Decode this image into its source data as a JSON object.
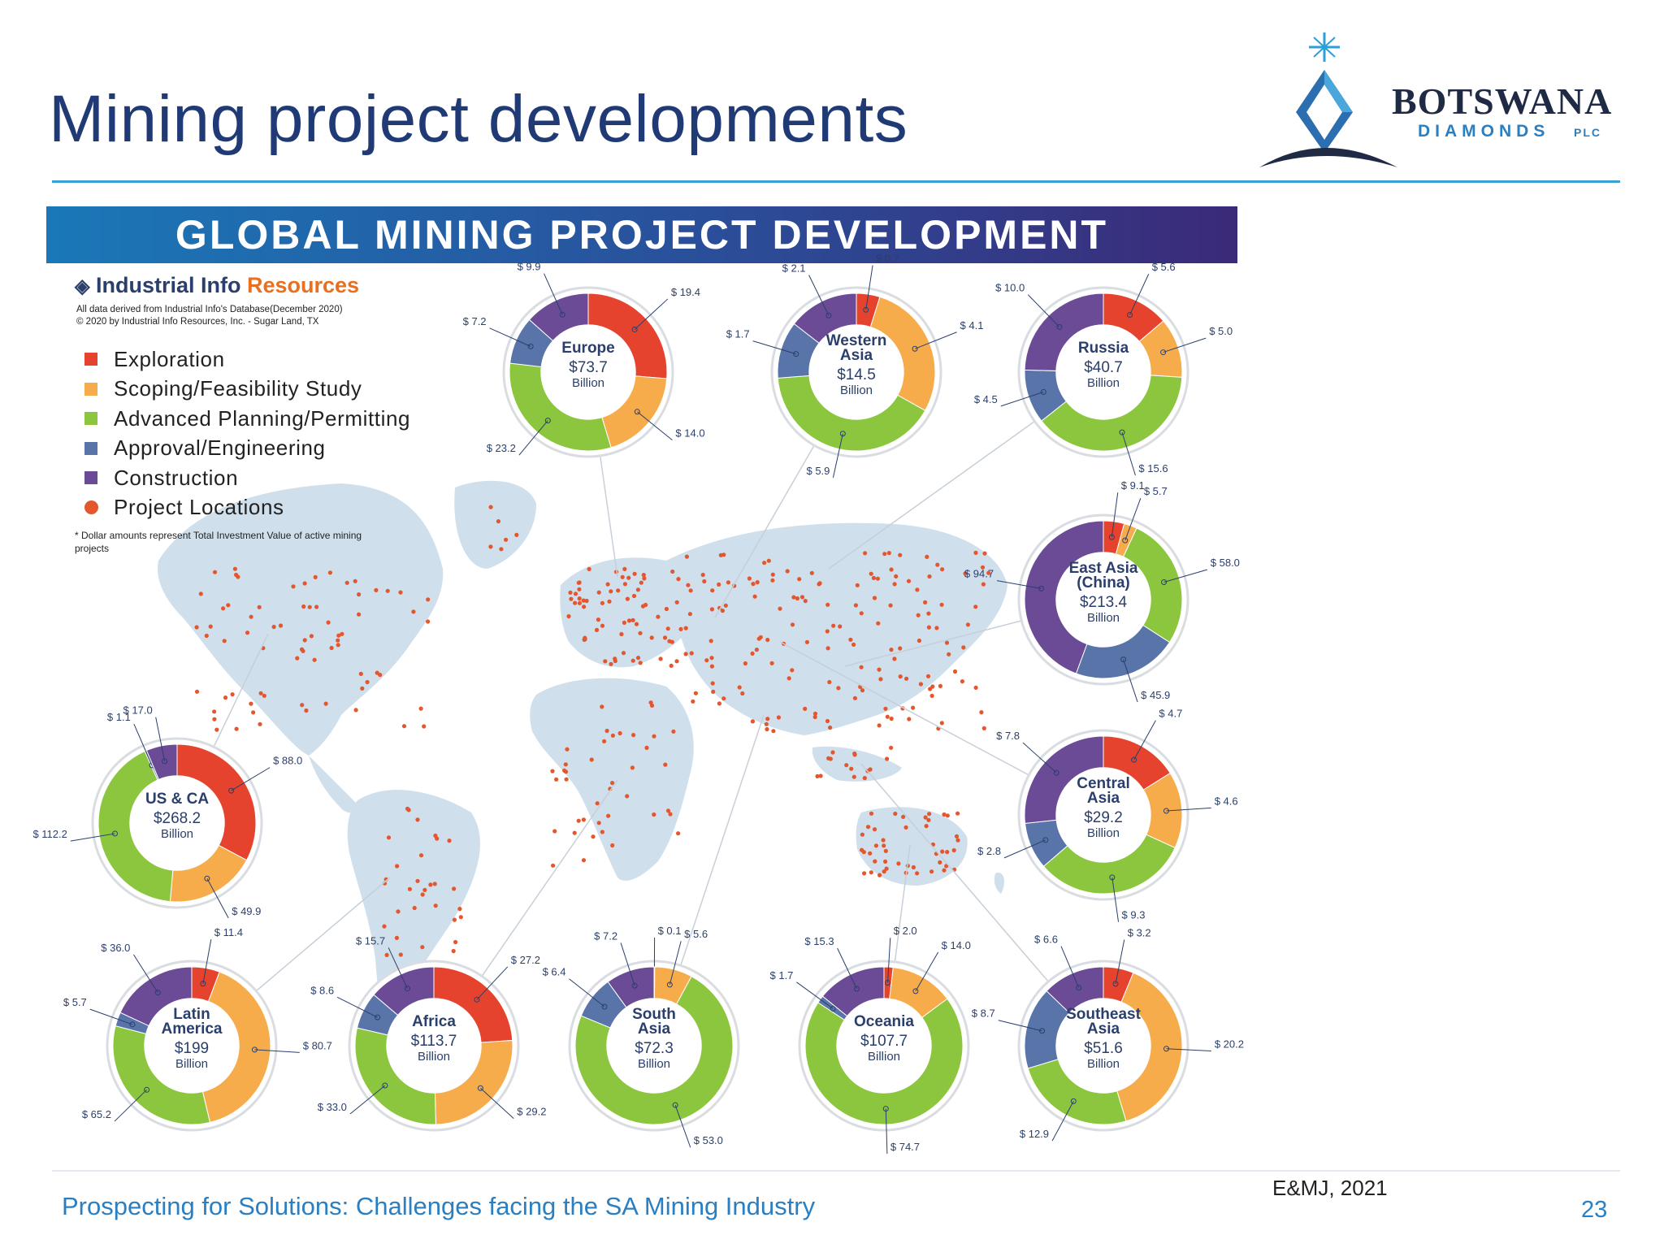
{
  "slide": {
    "title": "Mining project developments",
    "footer": "Prospecting for Solutions: Challenges facing the SA Mining Industry",
    "source": "E&MJ, 2021",
    "page": "23"
  },
  "logo": {
    "word": "BOTSWANA",
    "sub": "DIAMONDS",
    "plc": "PLC"
  },
  "infographic": {
    "title": "GLOBAL MINING PROJECT DEVELOPMENT",
    "publisher_part1": "Industrial Info",
    "publisher_part2": "Resources",
    "source_line1": "All data derived from Industrial Info's Database(December 2020)",
    "source_line2": "© 2020 by Industrial Info Resources, Inc. - Sugar Land, TX",
    "footnote": "* Dollar amounts represent Total Investment Value of active mining projects",
    "map_label": "Project Locations"
  },
  "colors": {
    "exploration": "#e5432d",
    "scoping": "#f7ac4c",
    "advanced": "#8cc63f",
    "approval": "#5874a8",
    "construction": "#6b4a96",
    "map": "#cfdfec",
    "dot": "#e4572e"
  },
  "chart_data": {
    "type": "pie",
    "variant": "donut",
    "stages": [
      {
        "key": "exploration",
        "name": "Exploration"
      },
      {
        "key": "scoping",
        "name": "Scoping/Feasibility Study"
      },
      {
        "key": "advanced",
        "name": "Advanced Planning/Permitting"
      },
      {
        "key": "approval",
        "name": "Approval/Engineering"
      },
      {
        "key": "construction",
        "name": "Construction"
      }
    ],
    "regions": [
      {
        "id": "europe",
        "name_lines": [
          "Europe"
        ],
        "total": "$73.7",
        "unit": "Billion",
        "values": [
          19.4,
          14.0,
          23.2,
          7.2,
          9.9
        ]
      },
      {
        "id": "western-asia",
        "name_lines": [
          "Western",
          "Asia"
        ],
        "total": "$14.5",
        "unit": "Billion",
        "values": [
          0.7,
          4.1,
          5.9,
          1.7,
          2.1
        ]
      },
      {
        "id": "russia",
        "name_lines": [
          "Russia"
        ],
        "total": "$40.7",
        "unit": "Billion",
        "values": [
          5.6,
          5.0,
          15.6,
          4.5,
          10.0
        ]
      },
      {
        "id": "east-asia",
        "name_lines": [
          "East Asia",
          "(China)"
        ],
        "total": "$213.4",
        "unit": "Billion",
        "values": [
          9.1,
          5.7,
          58.0,
          45.9,
          94.7
        ]
      },
      {
        "id": "us-ca",
        "name_lines": [
          "US & CA"
        ],
        "total": "$268.2",
        "unit": "Billion",
        "values": [
          88.0,
          49.9,
          112.2,
          1.1,
          17.0
        ]
      },
      {
        "id": "central-asia",
        "name_lines": [
          "Central",
          "Asia"
        ],
        "total": "$29.2",
        "unit": "Billion",
        "values": [
          4.7,
          4.6,
          9.3,
          2.8,
          7.8
        ]
      },
      {
        "id": "latin-america",
        "name_lines": [
          "Latin",
          "America"
        ],
        "total": "$199",
        "unit": "Billion",
        "values": [
          11.4,
          80.7,
          65.2,
          5.7,
          36.0
        ]
      },
      {
        "id": "africa",
        "name_lines": [
          "Africa"
        ],
        "total": "$113.7",
        "unit": "Billion",
        "values": [
          27.2,
          29.2,
          33.0,
          8.6,
          15.7
        ]
      },
      {
        "id": "south-asia",
        "name_lines": [
          "South",
          "Asia"
        ],
        "total": "$72.3",
        "unit": "Billion",
        "values": [
          0.1,
          5.6,
          53.0,
          6.4,
          7.2
        ]
      },
      {
        "id": "oceania",
        "name_lines": [
          "Oceania"
        ],
        "total": "$107.7",
        "unit": "Billion",
        "values": [
          2.0,
          14.0,
          74.7,
          1.7,
          15.3
        ]
      },
      {
        "id": "southeast-asia",
        "name_lines": [
          "Southeast",
          "Asia"
        ],
        "total": "$51.6",
        "unit": "Billion",
        "values": [
          3.2,
          20.2,
          12.9,
          8.7,
          6.6
        ]
      }
    ]
  }
}
